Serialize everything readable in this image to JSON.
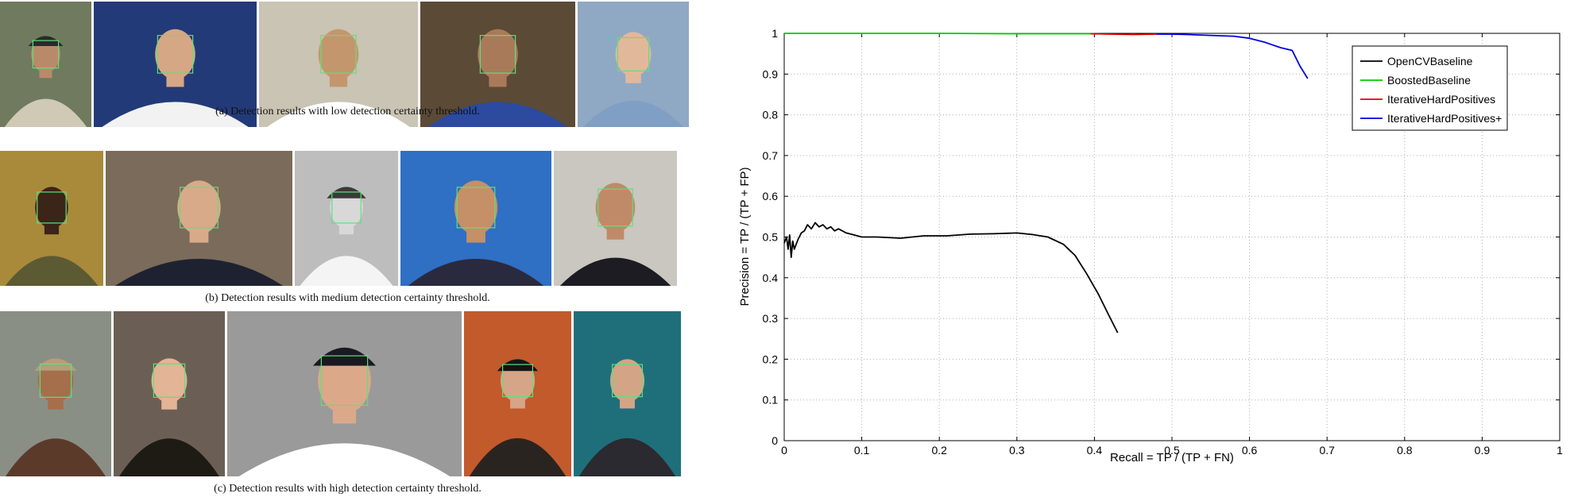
{
  "captions": {
    "a": "(a) Detection results with low detection certainty threshold.",
    "b": "(b) Detection results with medium detection certainty threshold.",
    "c": "(c) Detection results with high detection certainty threshold."
  },
  "photo_rows": [
    {
      "photos": [
        {
          "bg": "#6f7a5e",
          "skin": "#b98a6a",
          "cloth": "#cfc9b6",
          "hat": "#2a2a2a"
        },
        {
          "bg": "#233a78",
          "skin": "#d6a784",
          "cloth": "#f2f2f2",
          "hat": ""
        },
        {
          "bg": "#c9c4b3",
          "skin": "#c4966e",
          "cloth": "#ffffff",
          "hat": ""
        },
        {
          "bg": "#5b4a36",
          "skin": "#a97a5a",
          "cloth": "#2b4aa0",
          "hat": ""
        },
        {
          "bg": "#8fa9c4",
          "skin": "#e2b89a",
          "cloth": "#7f9fc4",
          "hat": ""
        }
      ]
    },
    {
      "photos": [
        {
          "bg": "#a88a3a",
          "skin": "#3b2418",
          "cloth": "#5c5a32",
          "hat": ""
        },
        {
          "bg": "#7b6b5a",
          "skin": "#d9aa8a",
          "cloth": "#1e2230",
          "hat": ""
        },
        {
          "bg": "#bdbdbd",
          "skin": "#d8d8d8",
          "cloth": "#f4f4f4",
          "hat": "#3a3a3a"
        },
        {
          "bg": "#2f6fc4",
          "skin": "#c58f67",
          "cloth": "#2a2a3e",
          "hat": ""
        },
        {
          "bg": "#c9c7c0",
          "skin": "#c08a68",
          "cloth": "#1c1c22",
          "hat": ""
        }
      ]
    },
    {
      "photos": [
        {
          "bg": "#8a8f86",
          "skin": "#a56f4c",
          "cloth": "#5c3a2a",
          "hat": "#b59e7a"
        },
        {
          "bg": "#6b5f55",
          "skin": "#e3b496",
          "cloth": "#1e1a14",
          "hat": ""
        },
        {
          "bg": "#9a9a9a",
          "skin": "#dba98a",
          "cloth": "#ffffff",
          "hat": "#1a1a22"
        },
        {
          "bg": "#c25a2c",
          "skin": "#d6a487",
          "cloth": "#2a2420",
          "hat": "#141414"
        },
        {
          "bg": "#1f6f7a",
          "skin": "#d4a487",
          "cloth": "#2a2a30",
          "hat": ""
        }
      ]
    }
  ],
  "chart_data": {
    "type": "line",
    "title": "",
    "xlabel": "Recall = TP / (TP + FN)",
    "ylabel": "Precision = TP / (TP + FP)",
    "xlim": [
      0,
      1
    ],
    "ylim": [
      0,
      1
    ],
    "xticks": [
      "0",
      "0.1",
      "0.2",
      "0.3",
      "0.4",
      "0.5",
      "0.6",
      "0.7",
      "0.8",
      "0.9",
      "1"
    ],
    "yticks": [
      "0",
      "0.1",
      "0.2",
      "0.3",
      "0.4",
      "0.5",
      "0.6",
      "0.7",
      "0.8",
      "0.9",
      "1"
    ],
    "grid": true,
    "legend_position": "top-right",
    "series": [
      {
        "name": "OpenCVBaseline",
        "color": "#000000",
        "x": [
          0.0,
          0.003,
          0.005,
          0.007,
          0.009,
          0.011,
          0.013,
          0.015,
          0.018,
          0.022,
          0.026,
          0.03,
          0.035,
          0.04,
          0.045,
          0.05,
          0.055,
          0.06,
          0.065,
          0.07,
          0.08,
          0.09,
          0.1,
          0.12,
          0.15,
          0.18,
          0.21,
          0.24,
          0.27,
          0.3,
          0.32,
          0.34,
          0.36,
          0.375,
          0.39,
          0.405,
          0.418,
          0.43
        ],
        "y": [
          0.485,
          0.5,
          0.47,
          0.505,
          0.45,
          0.49,
          0.47,
          0.48,
          0.495,
          0.51,
          0.515,
          0.53,
          0.52,
          0.535,
          0.525,
          0.53,
          0.52,
          0.525,
          0.515,
          0.52,
          0.51,
          0.505,
          0.5,
          0.5,
          0.497,
          0.503,
          0.503,
          0.507,
          0.508,
          0.51,
          0.506,
          0.5,
          0.482,
          0.455,
          0.41,
          0.36,
          0.31,
          0.265
        ]
      },
      {
        "name": "BoostedBaseline",
        "color": "#00cc00",
        "x": [
          0.0,
          0.1,
          0.2,
          0.3,
          0.38,
          0.4
        ],
        "y": [
          1.0,
          1.0,
          1.0,
          0.999,
          0.999,
          0.999
        ]
      },
      {
        "name": "IterativeHardPositives",
        "color": "#e00000",
        "x": [
          0.395,
          0.42,
          0.45,
          0.48
        ],
        "y": [
          0.999,
          0.998,
          0.997,
          0.998
        ]
      },
      {
        "name": "IterativeHardPositives+",
        "color": "#0000e0",
        "x": [
          0.48,
          0.5,
          0.52,
          0.55,
          0.58,
          0.6,
          0.62,
          0.64,
          0.655,
          0.665,
          0.675
        ],
        "y": [
          0.998,
          0.998,
          0.997,
          0.995,
          0.993,
          0.988,
          0.978,
          0.965,
          0.958,
          0.92,
          0.889
        ]
      }
    ]
  }
}
